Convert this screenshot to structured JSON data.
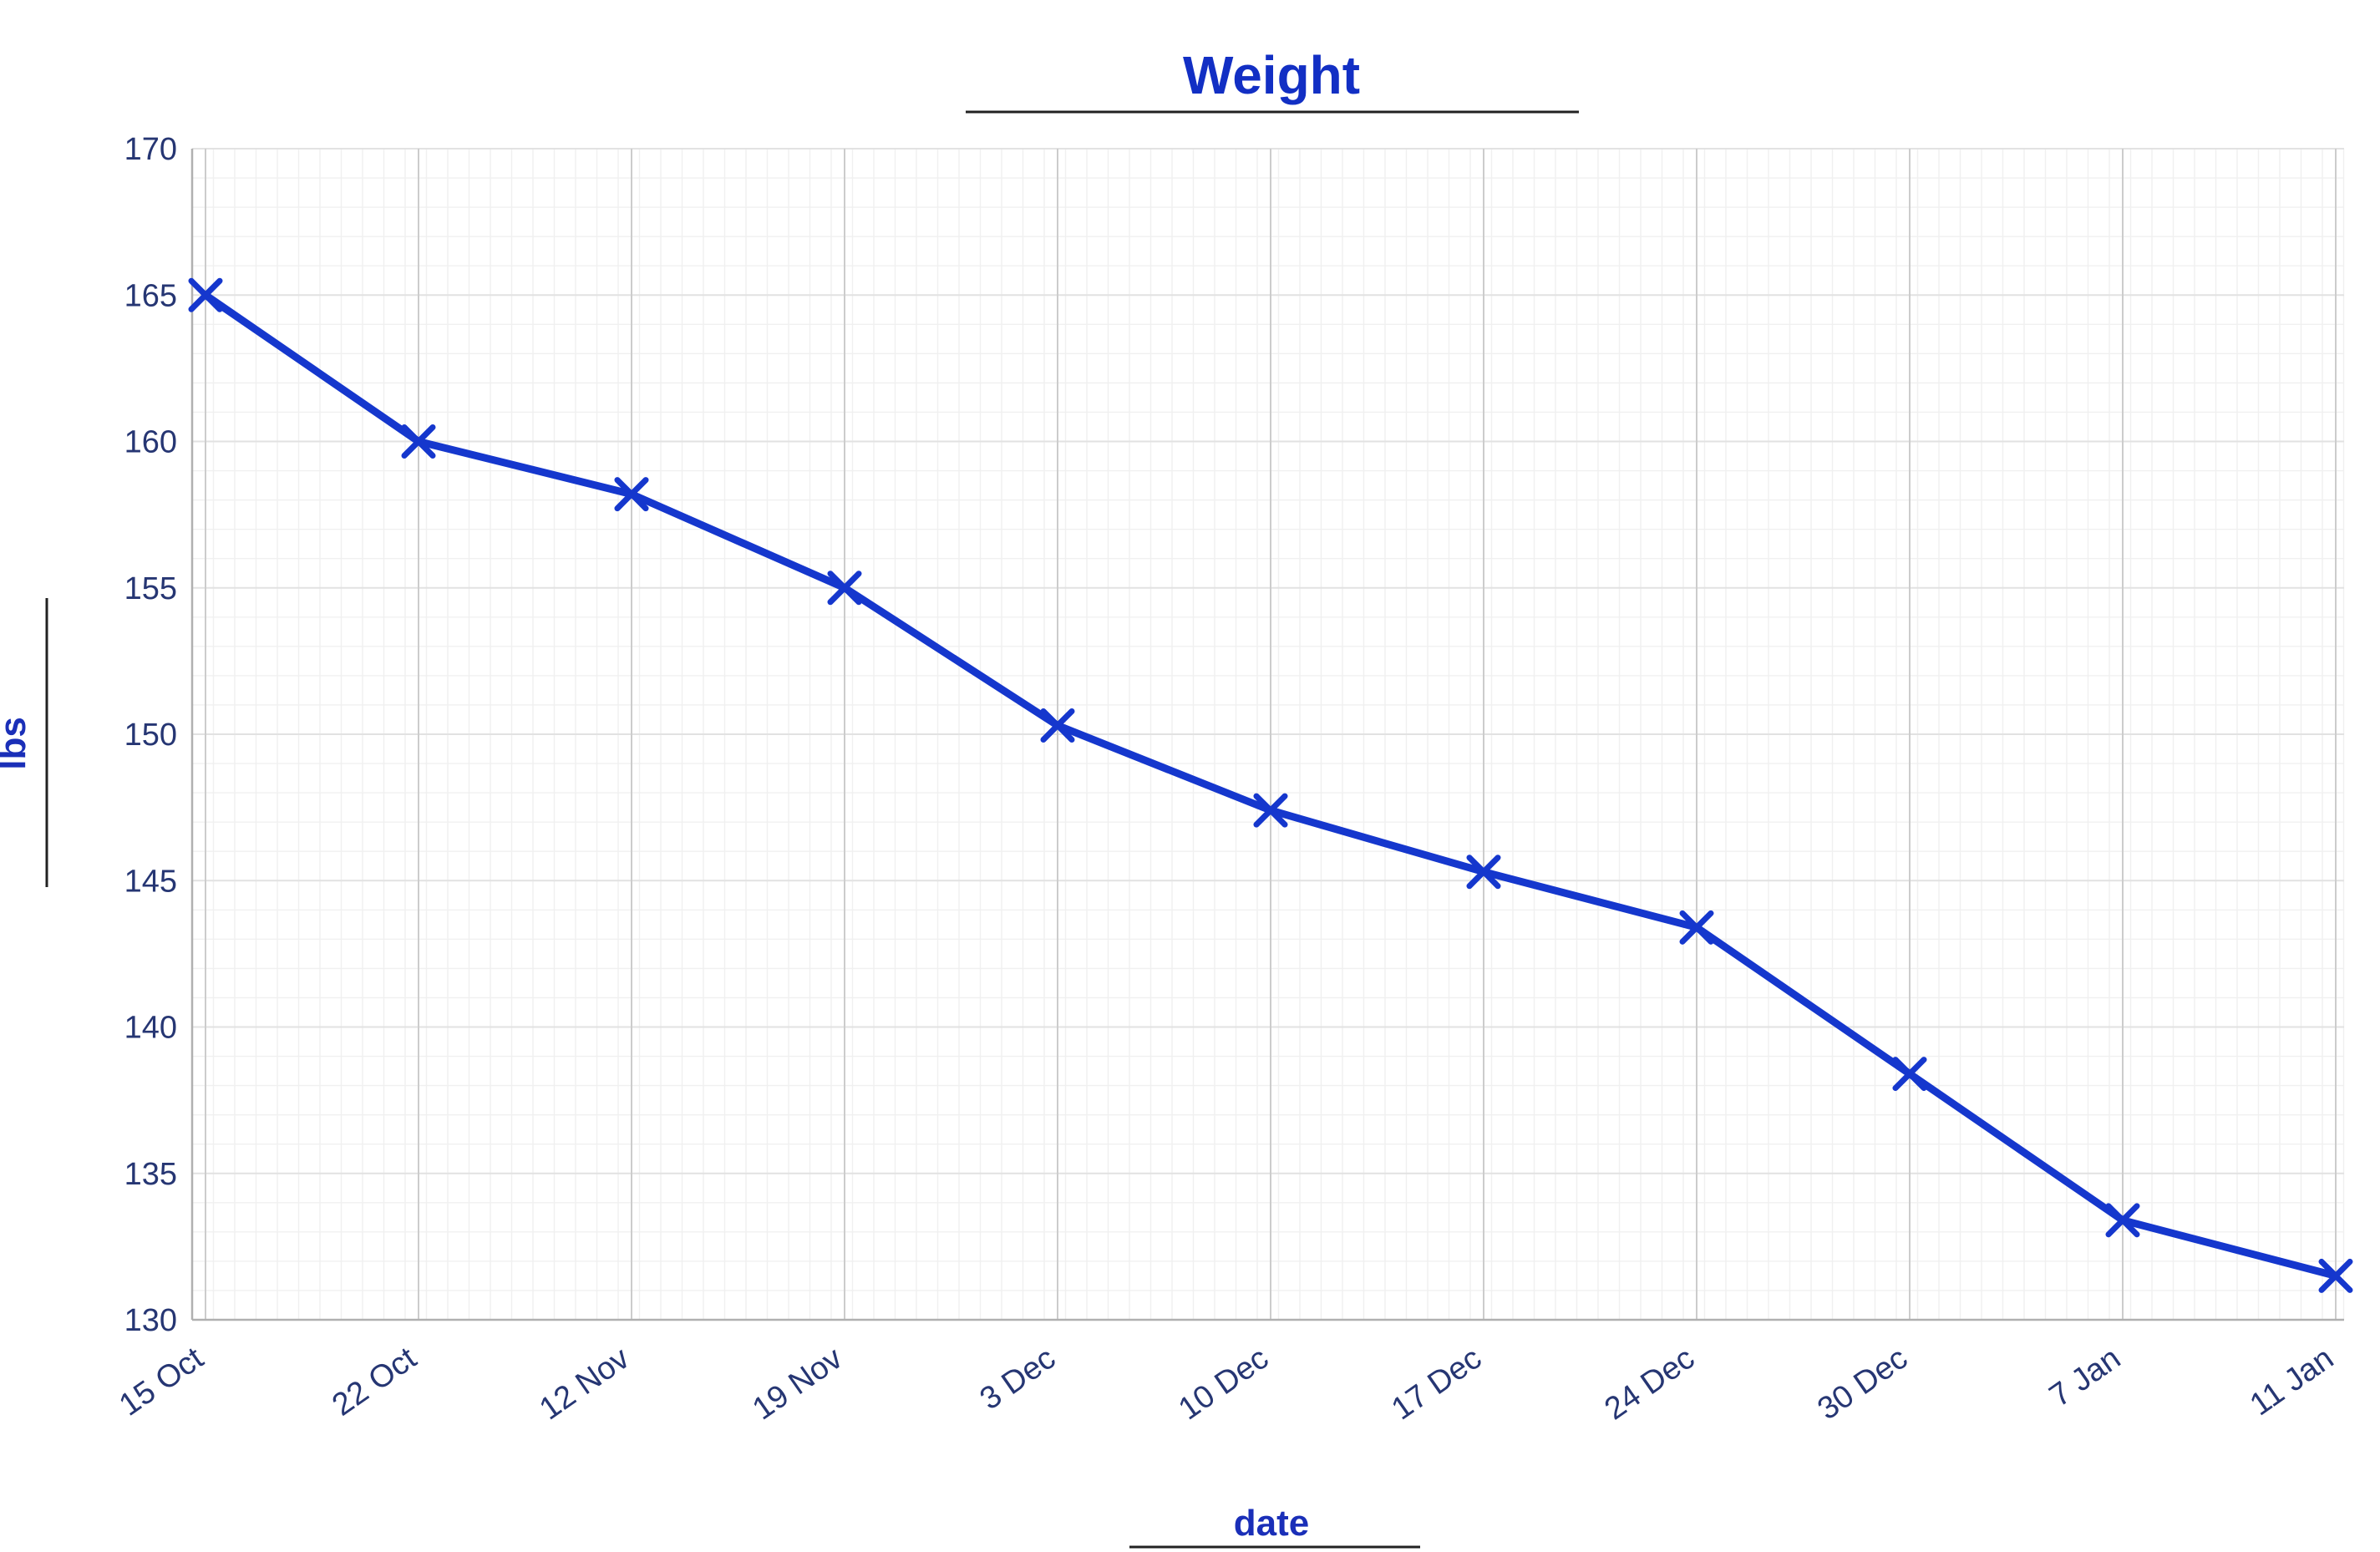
{
  "chart_data": {
    "type": "line",
    "title": "Weight",
    "xlabel": "date",
    "ylabel": "lbs",
    "categories": [
      "15 Oct",
      "22 Oct",
      "12 Nov",
      "19 Nov",
      "3 Dec",
      "10 Dec",
      "17 Dec",
      "24 Dec",
      "30 Dec",
      "7 Jan",
      "11 Jan"
    ],
    "series": [
      {
        "name": "Weight",
        "values": [
          165,
          160,
          158.2,
          155,
          150.3,
          147.4,
          145.3,
          143.4,
          138.4,
          133.4,
          131.5
        ]
      }
    ],
    "ylim": [
      130,
      170
    ],
    "ytick_step": 5,
    "yticks": [
      130,
      135,
      140,
      145,
      150,
      155,
      160,
      165,
      170
    ],
    "grid": "minor+major",
    "legend": "none",
    "marker": "x",
    "colors": {
      "line": "#1537cd",
      "title": "#122fc4",
      "axis_label": "#1a2fb8",
      "tick_label": "#263673",
      "grid_minor": "#f0f0f0",
      "grid_major_v": "#cccccc",
      "grid_major_h": "#e2e2e2",
      "axis_line": "#b0b0b0",
      "underline": "#222222"
    }
  }
}
